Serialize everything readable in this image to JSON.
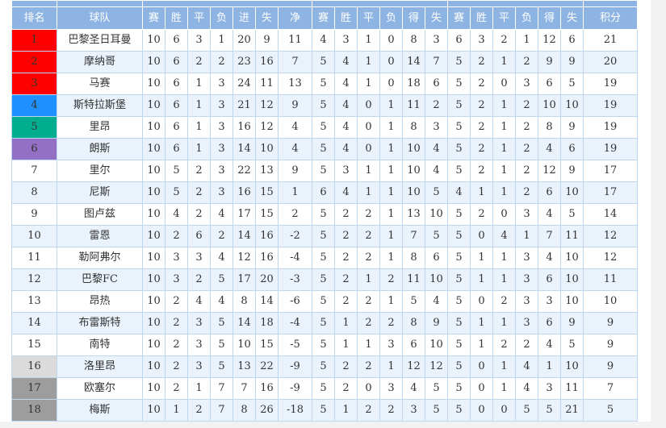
{
  "page": {
    "background_color": "#f2f2f2",
    "content_background_color": "#ffffff"
  },
  "table": {
    "header": {
      "rank": "排名",
      "team": "球队",
      "points": "积分",
      "groups": [
        {
          "name": "total",
          "cols": [
            "赛",
            "胜",
            "平",
            "负",
            "进",
            "失",
            "净"
          ]
        },
        {
          "name": "home",
          "cols": [
            "赛",
            "胜",
            "平",
            "负",
            "得",
            "失"
          ]
        },
        {
          "name": "away",
          "cols": [
            "赛",
            "胜",
            "平",
            "负",
            "得",
            "失"
          ]
        }
      ]
    },
    "colors": {
      "header_bg": "#8db4e2",
      "header_text": "#ffffff",
      "row_alt_bg": "#eaf2fb",
      "cell_border": "#bdd7f1",
      "outer_border": "#84abdb",
      "rank_champion": "#ff0000",
      "rank_cl": "#1e90ff",
      "rank_el": "#00ae8f",
      "rank_ecl": "#9470c4",
      "rank_playoff": "#dbdbdb",
      "rank_relegation": "#9d9d9d"
    },
    "rows": [
      {
        "rank": "1",
        "rank_color": "#ff0000",
        "team": "巴黎圣日耳曼",
        "total": [
          "10",
          "6",
          "3",
          "1",
          "20",
          "9",
          "11"
        ],
        "home": [
          "4",
          "3",
          "1",
          "0",
          "8",
          "3"
        ],
        "away": [
          "6",
          "3",
          "2",
          "1",
          "12",
          "6"
        ],
        "points": "21"
      },
      {
        "rank": "2",
        "rank_color": "#ff0000",
        "team": "摩纳哥",
        "total": [
          "10",
          "6",
          "2",
          "2",
          "23",
          "16",
          "7"
        ],
        "home": [
          "5",
          "4",
          "1",
          "0",
          "14",
          "7"
        ],
        "away": [
          "5",
          "2",
          "1",
          "2",
          "9",
          "9"
        ],
        "points": "20"
      },
      {
        "rank": "3",
        "rank_color": "#ff0000",
        "team": "马赛",
        "total": [
          "10",
          "6",
          "1",
          "3",
          "24",
          "11",
          "13"
        ],
        "home": [
          "5",
          "4",
          "1",
          "0",
          "18",
          "6"
        ],
        "away": [
          "5",
          "2",
          "0",
          "3",
          "6",
          "5"
        ],
        "points": "19"
      },
      {
        "rank": "4",
        "rank_color": "#1e90ff",
        "team": "斯特拉斯堡",
        "total": [
          "10",
          "6",
          "1",
          "3",
          "21",
          "12",
          "9"
        ],
        "home": [
          "5",
          "4",
          "0",
          "1",
          "11",
          "2"
        ],
        "away": [
          "5",
          "2",
          "1",
          "2",
          "10",
          "10"
        ],
        "points": "19"
      },
      {
        "rank": "5",
        "rank_color": "#00ae8f",
        "team": "里昂",
        "total": [
          "10",
          "6",
          "1",
          "3",
          "16",
          "12",
          "4"
        ],
        "home": [
          "5",
          "4",
          "0",
          "1",
          "8",
          "3"
        ],
        "away": [
          "5",
          "2",
          "1",
          "2",
          "8",
          "9"
        ],
        "points": "19"
      },
      {
        "rank": "6",
        "rank_color": "#9470c4",
        "team": "朗斯",
        "total": [
          "10",
          "6",
          "1",
          "3",
          "14",
          "10",
          "4"
        ],
        "home": [
          "5",
          "4",
          "0",
          "1",
          "10",
          "4"
        ],
        "away": [
          "5",
          "2",
          "1",
          "2",
          "4",
          "6"
        ],
        "points": "19"
      },
      {
        "rank": "7",
        "rank_color": "",
        "team": "里尔",
        "total": [
          "10",
          "5",
          "2",
          "3",
          "22",
          "13",
          "9"
        ],
        "home": [
          "5",
          "3",
          "1",
          "1",
          "10",
          "4"
        ],
        "away": [
          "5",
          "2",
          "1",
          "2",
          "12",
          "9"
        ],
        "points": "17"
      },
      {
        "rank": "8",
        "rank_color": "",
        "team": "尼斯",
        "total": [
          "10",
          "5",
          "2",
          "3",
          "16",
          "15",
          "1"
        ],
        "home": [
          "6",
          "4",
          "1",
          "1",
          "10",
          "5"
        ],
        "away": [
          "4",
          "1",
          "1",
          "2",
          "6",
          "10"
        ],
        "points": "17"
      },
      {
        "rank": "9",
        "rank_color": "",
        "team": "图卢兹",
        "total": [
          "10",
          "4",
          "2",
          "4",
          "17",
          "15",
          "2"
        ],
        "home": [
          "5",
          "2",
          "2",
          "1",
          "13",
          "10"
        ],
        "away": [
          "5",
          "2",
          "0",
          "3",
          "4",
          "5"
        ],
        "points": "14"
      },
      {
        "rank": "10",
        "rank_color": "",
        "team": "雷恩",
        "total": [
          "10",
          "2",
          "6",
          "2",
          "14",
          "16",
          "-2"
        ],
        "home": [
          "5",
          "2",
          "2",
          "1",
          "7",
          "5"
        ],
        "away": [
          "5",
          "0",
          "4",
          "1",
          "7",
          "11"
        ],
        "points": "12"
      },
      {
        "rank": "11",
        "rank_color": "",
        "team": "勒阿弗尔",
        "total": [
          "10",
          "3",
          "3",
          "4",
          "12",
          "16",
          "-4"
        ],
        "home": [
          "5",
          "2",
          "2",
          "1",
          "8",
          "6"
        ],
        "away": [
          "5",
          "1",
          "1",
          "3",
          "4",
          "10"
        ],
        "points": "12"
      },
      {
        "rank": "12",
        "rank_color": "",
        "team": "巴黎FC",
        "total": [
          "10",
          "3",
          "2",
          "5",
          "17",
          "20",
          "-3"
        ],
        "home": [
          "5",
          "2",
          "1",
          "2",
          "11",
          "10"
        ],
        "away": [
          "5",
          "1",
          "1",
          "3",
          "6",
          "10"
        ],
        "points": "11"
      },
      {
        "rank": "13",
        "rank_color": "",
        "team": "昂热",
        "total": [
          "10",
          "2",
          "4",
          "4",
          "8",
          "14",
          "-6"
        ],
        "home": [
          "5",
          "2",
          "2",
          "1",
          "5",
          "4"
        ],
        "away": [
          "5",
          "0",
          "2",
          "3",
          "3",
          "10"
        ],
        "points": "10"
      },
      {
        "rank": "14",
        "rank_color": "",
        "team": "布雷斯特",
        "total": [
          "10",
          "2",
          "3",
          "5",
          "14",
          "18",
          "-4"
        ],
        "home": [
          "5",
          "1",
          "2",
          "2",
          "8",
          "9"
        ],
        "away": [
          "5",
          "1",
          "1",
          "3",
          "6",
          "9"
        ],
        "points": "9"
      },
      {
        "rank": "15",
        "rank_color": "",
        "team": "南特",
        "total": [
          "10",
          "2",
          "3",
          "5",
          "10",
          "15",
          "-5"
        ],
        "home": [
          "5",
          "1",
          "1",
          "3",
          "6",
          "10"
        ],
        "away": [
          "5",
          "1",
          "2",
          "2",
          "4",
          "5"
        ],
        "points": "9"
      },
      {
        "rank": "16",
        "rank_color": "#dbdbdb",
        "team": "洛里昂",
        "total": [
          "10",
          "2",
          "3",
          "5",
          "13",
          "22",
          "-9"
        ],
        "home": [
          "5",
          "2",
          "2",
          "1",
          "12",
          "12"
        ],
        "away": [
          "5",
          "0",
          "1",
          "4",
          "1",
          "10"
        ],
        "points": "9"
      },
      {
        "rank": "17",
        "rank_color": "#9d9d9d",
        "team": "欧塞尔",
        "total": [
          "10",
          "2",
          "1",
          "7",
          "7",
          "16",
          "-9"
        ],
        "home": [
          "5",
          "2",
          "0",
          "3",
          "4",
          "5"
        ],
        "away": [
          "5",
          "0",
          "1",
          "4",
          "3",
          "11"
        ],
        "points": "7"
      },
      {
        "rank": "18",
        "rank_color": "#9d9d9d",
        "team": "梅斯",
        "total": [
          "10",
          "1",
          "2",
          "7",
          "8",
          "26",
          "-18"
        ],
        "home": [
          "5",
          "1",
          "2",
          "2",
          "3",
          "5"
        ],
        "away": [
          "5",
          "0",
          "0",
          "5",
          "5",
          "21"
        ],
        "points": "5"
      }
    ]
  }
}
